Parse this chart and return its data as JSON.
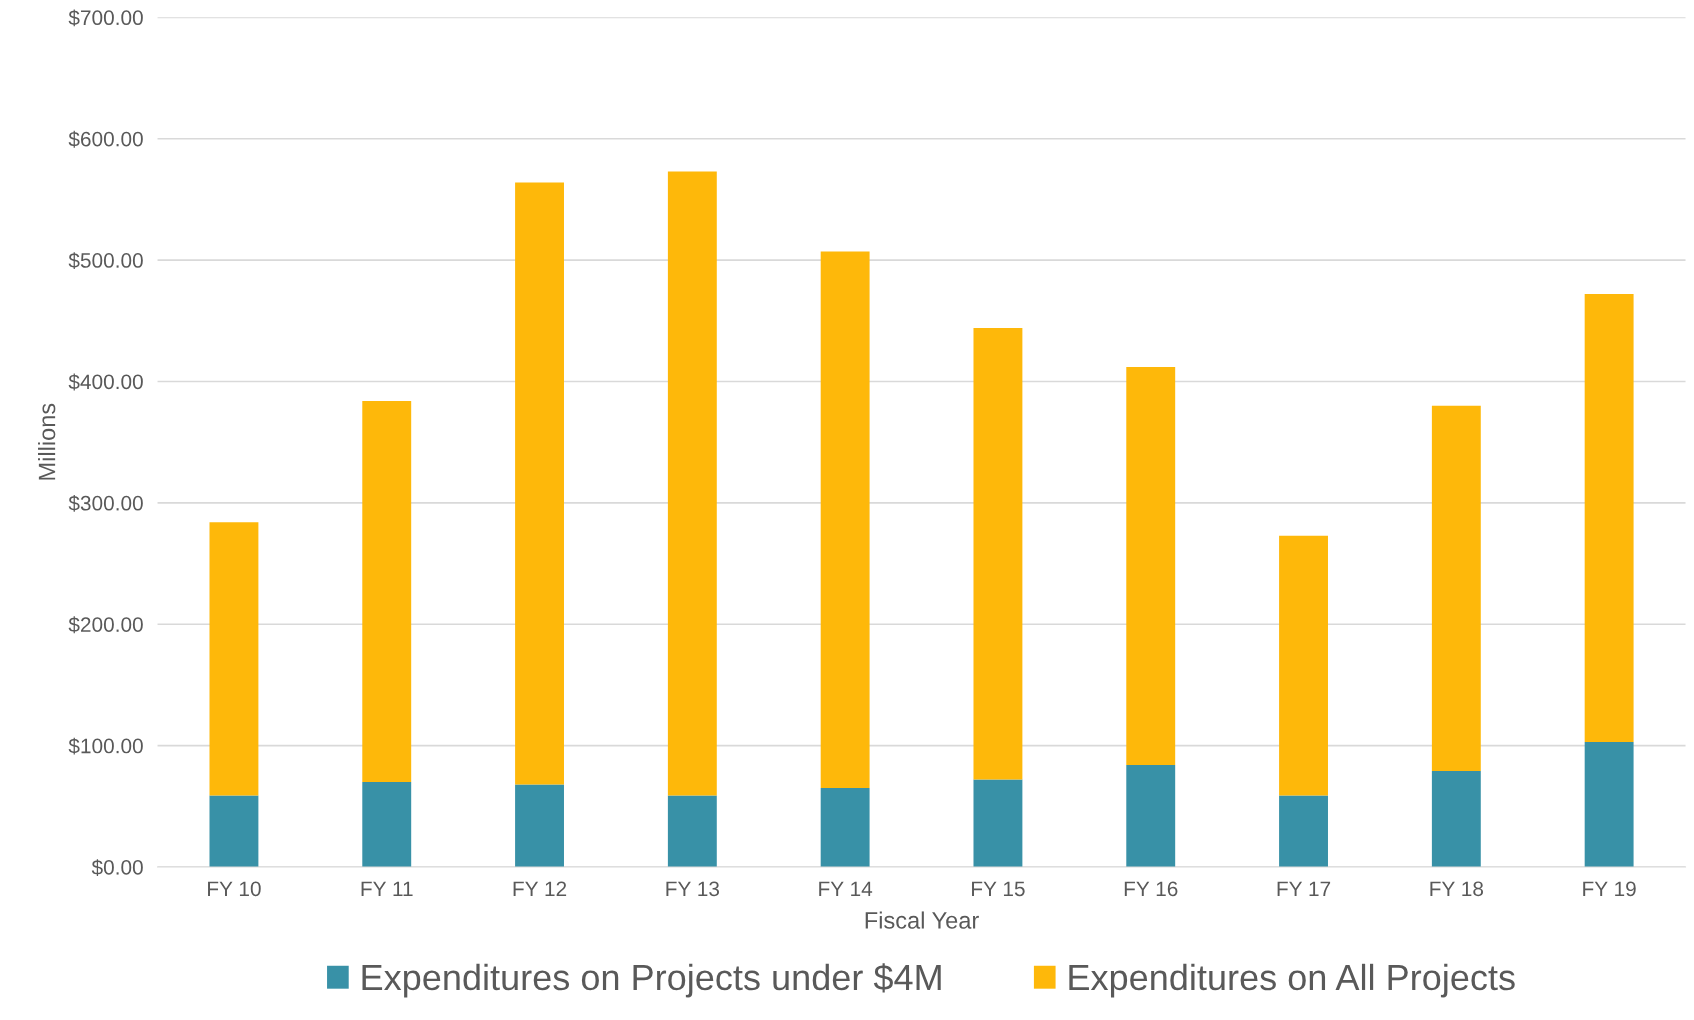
{
  "chart_data": {
    "type": "bar",
    "stacked": true,
    "xlabel": "Fiscal Year",
    "ylabel": "Millions",
    "categories": [
      "FY 10",
      "FY 11",
      "FY 12",
      "FY 13",
      "FY 14",
      "FY 15",
      "FY 16",
      "FY 17",
      "FY 18",
      "FY 19"
    ],
    "series": [
      {
        "name": "Expenditures on Projects under $4M",
        "color": "#3891a7",
        "values": [
          59,
          70,
          68,
          59,
          65,
          72,
          84,
          59,
          79,
          103
        ]
      },
      {
        "name": "Expenditures on All Projects",
        "color": "#feb80a",
        "values": [
          225,
          314,
          496,
          514,
          442,
          372,
          328,
          214,
          301,
          369
        ]
      }
    ],
    "ylim": [
      0,
      700
    ],
    "yticks": [
      {
        "value": 0,
        "label": "$0.00"
      },
      {
        "value": 100,
        "label": "$100.00"
      },
      {
        "value": 200,
        "label": "$200.00"
      },
      {
        "value": 300,
        "label": "$300.00"
      },
      {
        "value": 400,
        "label": "$400.00"
      },
      {
        "value": 500,
        "label": "$500.00"
      },
      {
        "value": 600,
        "label": "$600.00"
      },
      {
        "value": 700,
        "label": "$700.00"
      }
    ],
    "grid": "y",
    "legend": "bottom"
  }
}
